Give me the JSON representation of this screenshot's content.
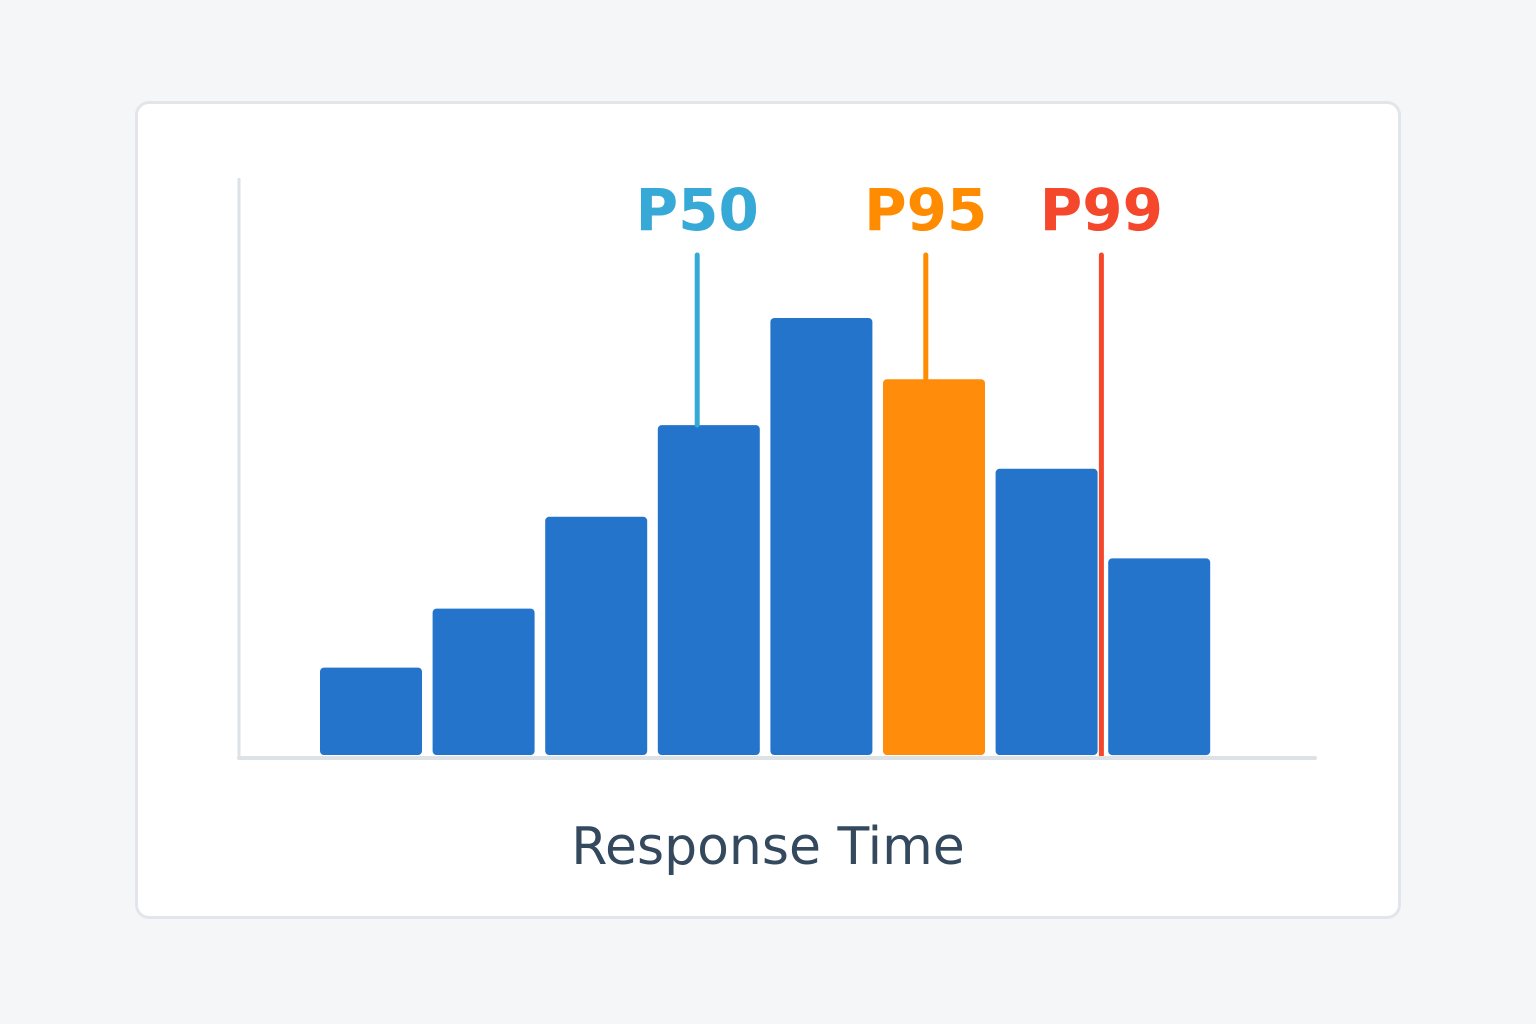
{
  "chart_data": {
    "type": "bar",
    "title": "",
    "xlabel": "Response Time",
    "ylabel": "",
    "categories": [
      "",
      "",
      "",
      "",
      "",
      "",
      "",
      ""
    ],
    "values": [
      20,
      33.5,
      54.5,
      75.5,
      100,
      86,
      65.5,
      45
    ],
    "highlight_index": 5,
    "ylim": [
      0,
      100
    ],
    "grid": false,
    "legend": "none",
    "markers": [
      {
        "label": "P50",
        "bin_position": 3.35,
        "color": "#36a9d6"
      },
      {
        "label": "P95",
        "bin_position": 5.38,
        "color": "#ff8c00"
      },
      {
        "label": "P99",
        "bin_position": 6.94,
        "color": "#f5472b"
      }
    ]
  },
  "colors": {
    "bar": "#2474cc",
    "bar_highlight": "#ff8c0a",
    "axis": "#dde2e6",
    "xlabel": "#34495e"
  }
}
